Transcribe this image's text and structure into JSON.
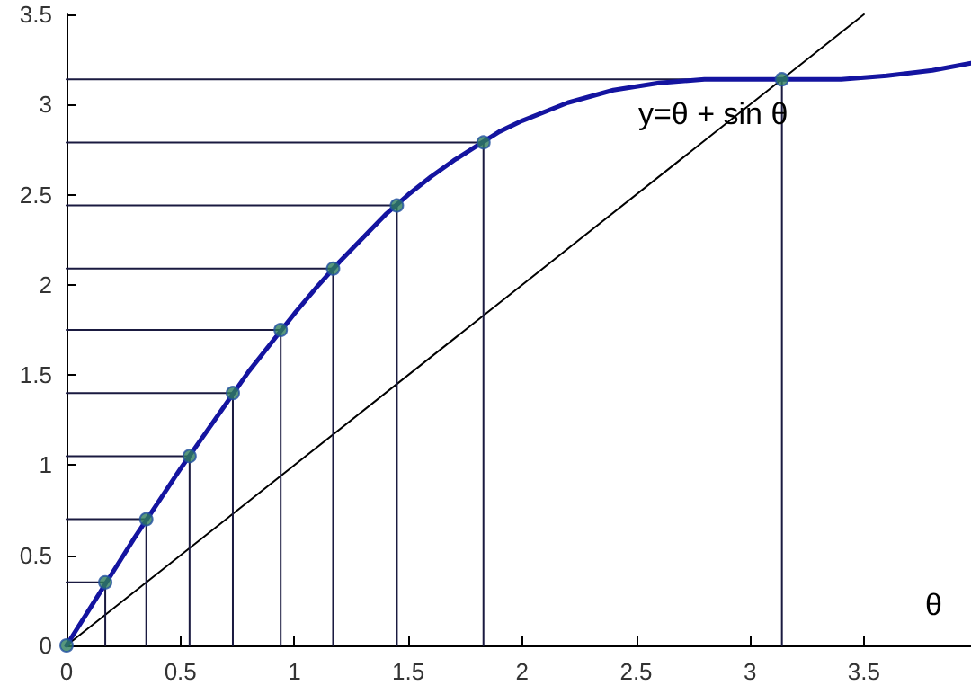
{
  "chart_data": {
    "type": "line",
    "xlabel": "θ",
    "xlim": [
      0,
      3.97
    ],
    "ylim": [
      0,
      3.5
    ],
    "xticks": [
      0,
      0.5,
      1,
      1.5,
      2,
      2.5,
      3,
      3.5
    ],
    "yticks": [
      0,
      0.5,
      1,
      1.5,
      2,
      2.5,
      3,
      3.5
    ],
    "grid": false,
    "marker": "none",
    "line_style": "solid",
    "annotations": [
      "y=θ + sin θ"
    ],
    "series": [
      {
        "type": "line",
        "color": "#1414a0",
        "x": [
          0,
          0.1,
          0.2,
          0.3,
          0.4,
          0.5,
          0.6,
          0.7,
          0.8,
          0.9,
          1.0,
          1.1,
          1.2,
          1.3,
          1.4,
          1.5,
          1.6,
          1.7,
          1.8,
          1.9,
          2.0,
          2.2,
          2.4,
          2.6,
          2.8,
          3.0,
          3.2,
          3.4,
          3.6,
          3.8,
          3.97
        ],
        "values": [
          0,
          0.2,
          0.4,
          0.6,
          0.79,
          0.98,
          1.16,
          1.34,
          1.52,
          1.68,
          1.84,
          1.99,
          2.13,
          2.26,
          2.39,
          2.5,
          2.6,
          2.69,
          2.77,
          2.85,
          2.91,
          3.01,
          3.08,
          3.12,
          3.14,
          3.14,
          3.14,
          3.14,
          3.16,
          3.19,
          3.23
        ]
      },
      {
        "type": "line",
        "color": "#000000",
        "x": [
          0,
          3.5
        ],
        "values": [
          0,
          3.5
        ]
      },
      {
        "type": "line",
        "color": "#1a1a40",
        "x": [
          0,
          0.17,
          0.17
        ],
        "values": [
          0.35,
          0.35,
          0
        ]
      },
      {
        "type": "line",
        "color": "#1a1a40",
        "x": [
          0,
          0.35,
          0.35
        ],
        "values": [
          0.7,
          0.7,
          0
        ]
      },
      {
        "type": "line",
        "color": "#1a1a40",
        "x": [
          0,
          0.54,
          0.54
        ],
        "values": [
          1.05,
          1.05,
          0
        ]
      },
      {
        "type": "line",
        "color": "#1a1a40",
        "x": [
          0,
          0.73,
          0.73
        ],
        "values": [
          1.4,
          1.4,
          0
        ]
      },
      {
        "type": "line",
        "color": "#1a1a40",
        "x": [
          0,
          0.94,
          0.94
        ],
        "values": [
          1.75,
          1.75,
          0
        ]
      },
      {
        "type": "line",
        "color": "#1a1a40",
        "x": [
          0,
          1.17,
          1.17
        ],
        "values": [
          2.09,
          2.09,
          0
        ]
      },
      {
        "type": "line",
        "color": "#1a1a40",
        "x": [
          0,
          1.45,
          1.45
        ],
        "values": [
          2.44,
          2.44,
          0
        ]
      },
      {
        "type": "line",
        "color": "#1a1a40",
        "x": [
          0,
          1.83,
          1.83
        ],
        "values": [
          2.79,
          2.79,
          0
        ]
      },
      {
        "type": "line",
        "color": "#1a1a40",
        "x": [
          0,
          3.14,
          3.14
        ],
        "values": [
          3.14,
          3.14,
          0
        ]
      },
      {
        "type": "scatter",
        "marker": "circle",
        "color": "#2e7d5b",
        "x": [
          0,
          0.17,
          0.35,
          0.54,
          0.73,
          0.94,
          1.17,
          1.45,
          1.83,
          3.14
        ],
        "values": [
          0,
          0.35,
          0.7,
          1.05,
          1.4,
          1.75,
          2.09,
          2.44,
          2.79,
          3.14
        ]
      }
    ]
  }
}
